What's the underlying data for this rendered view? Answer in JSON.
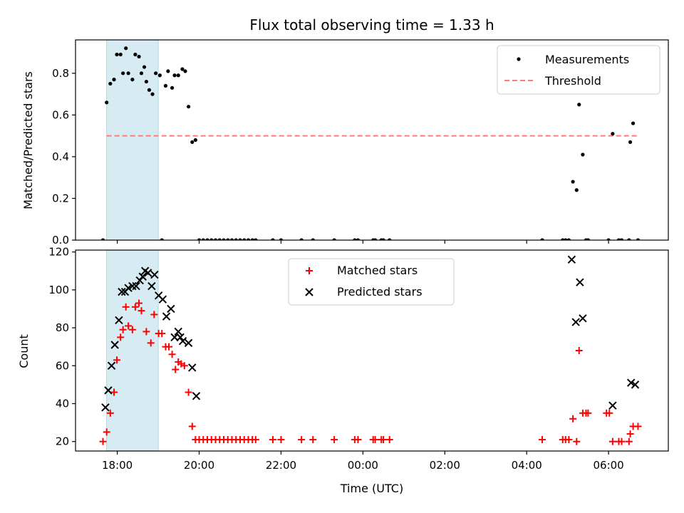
{
  "chart_data": [
    {
      "type": "scatter",
      "title": "Flux total observing time = 1.33 h",
      "xlabel": "",
      "ylabel": "Matched/Predicted stars",
      "x_unit": "hours since 00:00 UTC of first night (times after midnight are +24)",
      "xlim": [
        16.98,
        31.46
      ],
      "ylim": [
        0,
        0.96
      ],
      "yticks": [
        0.0,
        0.2,
        0.4,
        0.6,
        0.8
      ],
      "ytick_labels": [
        "0.0",
        "0.2",
        "0.4",
        "0.6",
        "0.8"
      ],
      "shaded_interval": {
        "x": [
          17.74,
          19.0
        ],
        "color": "#add8e6"
      },
      "threshold": {
        "name": "Threshold",
        "y": 0.5,
        "x_range": [
          17.74,
          30.72
        ],
        "color": "#ff7b7b"
      },
      "legend": {
        "position": "top-right",
        "entries": [
          "Measurements",
          "Threshold"
        ]
      },
      "series": [
        {
          "name": "Measurements",
          "marker": "dot",
          "color": "#000000",
          "points": [
            [
              17.65,
              0.0
            ],
            [
              17.74,
              0.66
            ],
            [
              17.83,
              0.75
            ],
            [
              17.92,
              0.77
            ],
            [
              17.99,
              0.89
            ],
            [
              18.08,
              0.89
            ],
            [
              18.14,
              0.8
            ],
            [
              18.21,
              0.92
            ],
            [
              18.27,
              0.8
            ],
            [
              18.37,
              0.77
            ],
            [
              18.44,
              0.89
            ],
            [
              18.53,
              0.88
            ],
            [
              18.59,
              0.8
            ],
            [
              18.66,
              0.83
            ],
            [
              18.71,
              0.76
            ],
            [
              18.78,
              0.72
            ],
            [
              18.86,
              0.7
            ],
            [
              18.94,
              0.8
            ],
            [
              19.04,
              0.79
            ],
            [
              19.09,
              0.0
            ],
            [
              19.18,
              0.74
            ],
            [
              19.24,
              0.81
            ],
            [
              19.34,
              0.73
            ],
            [
              19.4,
              0.79
            ],
            [
              19.49,
              0.79
            ],
            [
              19.59,
              0.82
            ],
            [
              19.66,
              0.81
            ],
            [
              19.74,
              0.64
            ],
            [
              19.83,
              0.47
            ],
            [
              19.91,
              0.48
            ],
            [
              20.0,
              0.0
            ],
            [
              20.1,
              0.0
            ],
            [
              20.2,
              0.0
            ],
            [
              20.3,
              0.0
            ],
            [
              20.4,
              0.0
            ],
            [
              20.5,
              0.0
            ],
            [
              20.6,
              0.0
            ],
            [
              20.7,
              0.0
            ],
            [
              20.8,
              0.0
            ],
            [
              20.9,
              0.0
            ],
            [
              21.0,
              0.0
            ],
            [
              21.1,
              0.0
            ],
            [
              21.2,
              0.0
            ],
            [
              21.3,
              0.0
            ],
            [
              21.38,
              0.0
            ],
            [
              21.8,
              0.0
            ],
            [
              22.0,
              0.0
            ],
            [
              22.5,
              0.0
            ],
            [
              22.78,
              0.0
            ],
            [
              23.3,
              0.0
            ],
            [
              23.8,
              0.0
            ],
            [
              23.88,
              0.0
            ],
            [
              24.25,
              0.0
            ],
            [
              24.3,
              0.0
            ],
            [
              24.45,
              0.0
            ],
            [
              24.5,
              0.0
            ],
            [
              24.65,
              0.0
            ],
            [
              28.38,
              0.0
            ],
            [
              28.88,
              0.0
            ],
            [
              28.95,
              0.0
            ],
            [
              29.03,
              0.0
            ],
            [
              29.13,
              0.28
            ],
            [
              29.22,
              0.24
            ],
            [
              29.28,
              0.65
            ],
            [
              29.37,
              0.41
            ],
            [
              29.45,
              0.0
            ],
            [
              29.5,
              0.0
            ],
            [
              30.0,
              0.0
            ],
            [
              30.1,
              0.51
            ],
            [
              30.25,
              0.0
            ],
            [
              30.32,
              0.0
            ],
            [
              30.5,
              0.0
            ],
            [
              30.53,
              0.47
            ],
            [
              30.6,
              0.56
            ],
            [
              30.72,
              0.0
            ]
          ]
        }
      ]
    },
    {
      "type": "scatter",
      "title": "",
      "xlabel": "Time (UTC)",
      "ylabel": "Count",
      "x_unit": "hours since 00:00 UTC of first night (times after midnight are +24)",
      "xlim": [
        16.98,
        31.46
      ],
      "ylim": [
        15,
        121
      ],
      "xticks": [
        18,
        20,
        22,
        24,
        26,
        28,
        30
      ],
      "xtick_labels": [
        "18:00",
        "20:00",
        "22:00",
        "00:00",
        "02:00",
        "04:00",
        "06:00"
      ],
      "yticks": [
        20,
        40,
        60,
        80,
        100,
        120
      ],
      "ytick_labels": [
        "20",
        "40",
        "60",
        "80",
        "100",
        "120"
      ],
      "shaded_interval": {
        "x": [
          17.74,
          19.0
        ],
        "color": "#add8e6"
      },
      "legend": {
        "position": "top-center",
        "entries": [
          "Matched stars",
          "Predicted stars"
        ]
      },
      "series": [
        {
          "name": "Matched stars",
          "marker": "plus",
          "color": "#ff0000",
          "points": [
            [
              17.65,
              20
            ],
            [
              17.74,
              25
            ],
            [
              17.83,
              35
            ],
            [
              17.92,
              46
            ],
            [
              17.99,
              63
            ],
            [
              18.08,
              75
            ],
            [
              18.14,
              79
            ],
            [
              18.21,
              91
            ],
            [
              18.27,
              81
            ],
            [
              18.37,
              79
            ],
            [
              18.44,
              91
            ],
            [
              18.53,
              93
            ],
            [
              18.59,
              89
            ],
            [
              18.71,
              78
            ],
            [
              18.82,
              72
            ],
            [
              18.9,
              87
            ],
            [
              19.01,
              77
            ],
            [
              19.09,
              77
            ],
            [
              19.18,
              70
            ],
            [
              19.26,
              70
            ],
            [
              19.34,
              66
            ],
            [
              19.42,
              58
            ],
            [
              19.49,
              62
            ],
            [
              19.56,
              61
            ],
            [
              19.64,
              60
            ],
            [
              19.74,
              46
            ],
            [
              19.83,
              28
            ],
            [
              19.91,
              21
            ],
            [
              20.0,
              21
            ],
            [
              20.1,
              21
            ],
            [
              20.2,
              21
            ],
            [
              20.3,
              21
            ],
            [
              20.4,
              21
            ],
            [
              20.5,
              21
            ],
            [
              20.6,
              21
            ],
            [
              20.7,
              21
            ],
            [
              20.8,
              21
            ],
            [
              20.9,
              21
            ],
            [
              21.0,
              21
            ],
            [
              21.1,
              21
            ],
            [
              21.2,
              21
            ],
            [
              21.3,
              21
            ],
            [
              21.38,
              21
            ],
            [
              21.8,
              21
            ],
            [
              22.0,
              21
            ],
            [
              22.5,
              21
            ],
            [
              22.78,
              21
            ],
            [
              23.3,
              21
            ],
            [
              23.8,
              21
            ],
            [
              23.88,
              21
            ],
            [
              24.25,
              21
            ],
            [
              24.3,
              21
            ],
            [
              24.45,
              21
            ],
            [
              24.5,
              21
            ],
            [
              24.65,
              21
            ],
            [
              28.38,
              21
            ],
            [
              28.88,
              21
            ],
            [
              28.95,
              21
            ],
            [
              29.03,
              21
            ],
            [
              29.13,
              32
            ],
            [
              29.22,
              20
            ],
            [
              29.28,
              68
            ],
            [
              29.37,
              35
            ],
            [
              29.45,
              35
            ],
            [
              29.5,
              35
            ],
            [
              29.95,
              35
            ],
            [
              30.02,
              35
            ],
            [
              30.1,
              20
            ],
            [
              30.25,
              20
            ],
            [
              30.32,
              20
            ],
            [
              30.5,
              20
            ],
            [
              30.53,
              24
            ],
            [
              30.6,
              28
            ],
            [
              30.72,
              28
            ]
          ]
        },
        {
          "name": "Predicted stars",
          "marker": "x",
          "color": "#000000",
          "points": [
            [
              17.71,
              38
            ],
            [
              17.78,
              47
            ],
            [
              17.86,
              60
            ],
            [
              17.94,
              71
            ],
            [
              18.04,
              84
            ],
            [
              18.11,
              99
            ],
            [
              18.19,
              99
            ],
            [
              18.27,
              101
            ],
            [
              18.37,
              102
            ],
            [
              18.46,
              102
            ],
            [
              18.55,
              105
            ],
            [
              18.62,
              107
            ],
            [
              18.68,
              110
            ],
            [
              18.75,
              109
            ],
            [
              18.84,
              102
            ],
            [
              18.91,
              108
            ],
            [
              19.01,
              97
            ],
            [
              19.11,
              95
            ],
            [
              19.2,
              86
            ],
            [
              19.31,
              90
            ],
            [
              19.4,
              75
            ],
            [
              19.49,
              78
            ],
            [
              19.54,
              75
            ],
            [
              19.6,
              73
            ],
            [
              19.74,
              72
            ],
            [
              19.83,
              59
            ],
            [
              19.93,
              44
            ],
            [
              29.1,
              116
            ],
            [
              29.2,
              83
            ],
            [
              29.3,
              104
            ],
            [
              29.37,
              85
            ],
            [
              30.1,
              39
            ],
            [
              30.55,
              51
            ],
            [
              30.65,
              50
            ]
          ]
        }
      ]
    }
  ]
}
